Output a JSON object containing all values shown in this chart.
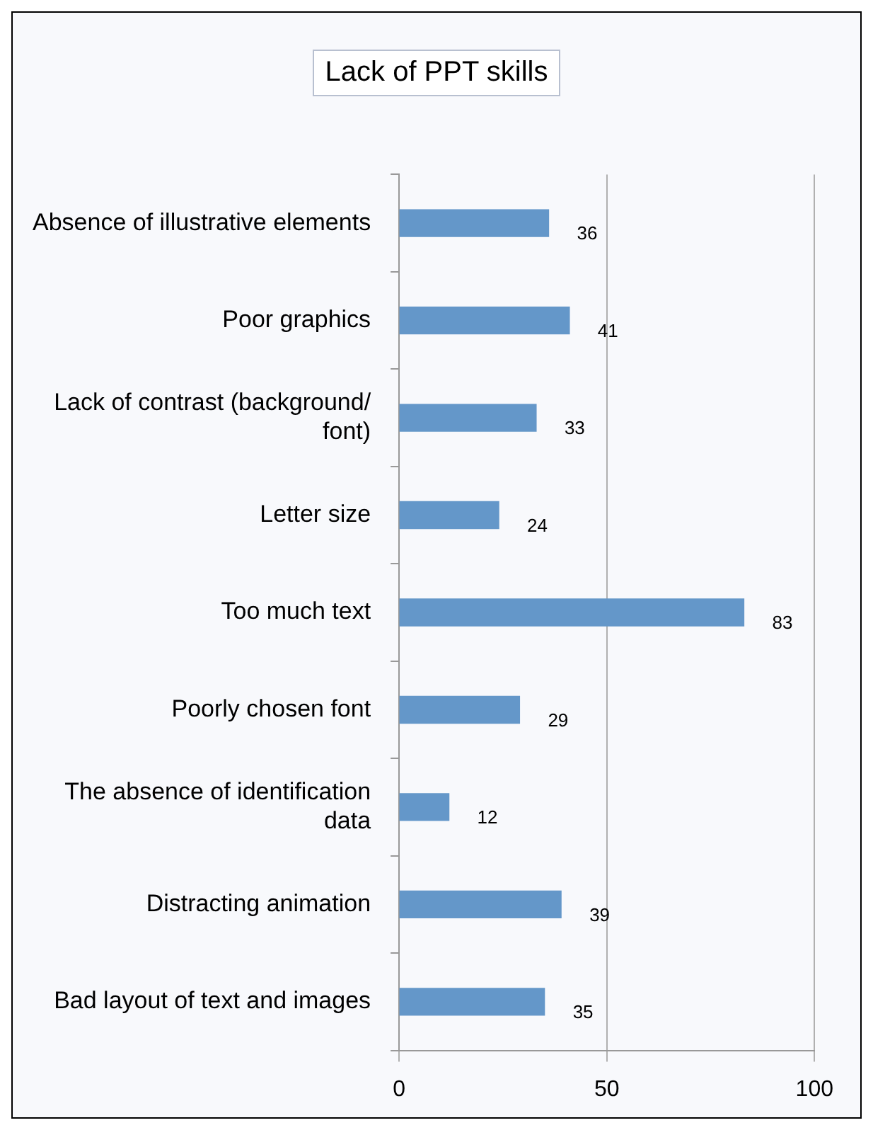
{
  "chart_data": {
    "type": "bar",
    "orientation": "horizontal",
    "title": "Lack of PPT skills",
    "categories": [
      "Absence of illustrative elements",
      "Poor graphics",
      "Lack of contrast (background/ font)",
      "Letter size",
      "Too much text",
      "Poorly chosen font",
      "The absence of identification data",
      "Distracting animation",
      "Bad layout of text and images"
    ],
    "values": [
      36,
      41,
      33,
      24,
      83,
      29,
      12,
      39,
      35
    ],
    "color": "#6497c9",
    "xlim": [
      0,
      100
    ],
    "xticks": [
      0,
      50,
      100
    ],
    "grid": "x",
    "data_labels": true,
    "legend": false
  }
}
